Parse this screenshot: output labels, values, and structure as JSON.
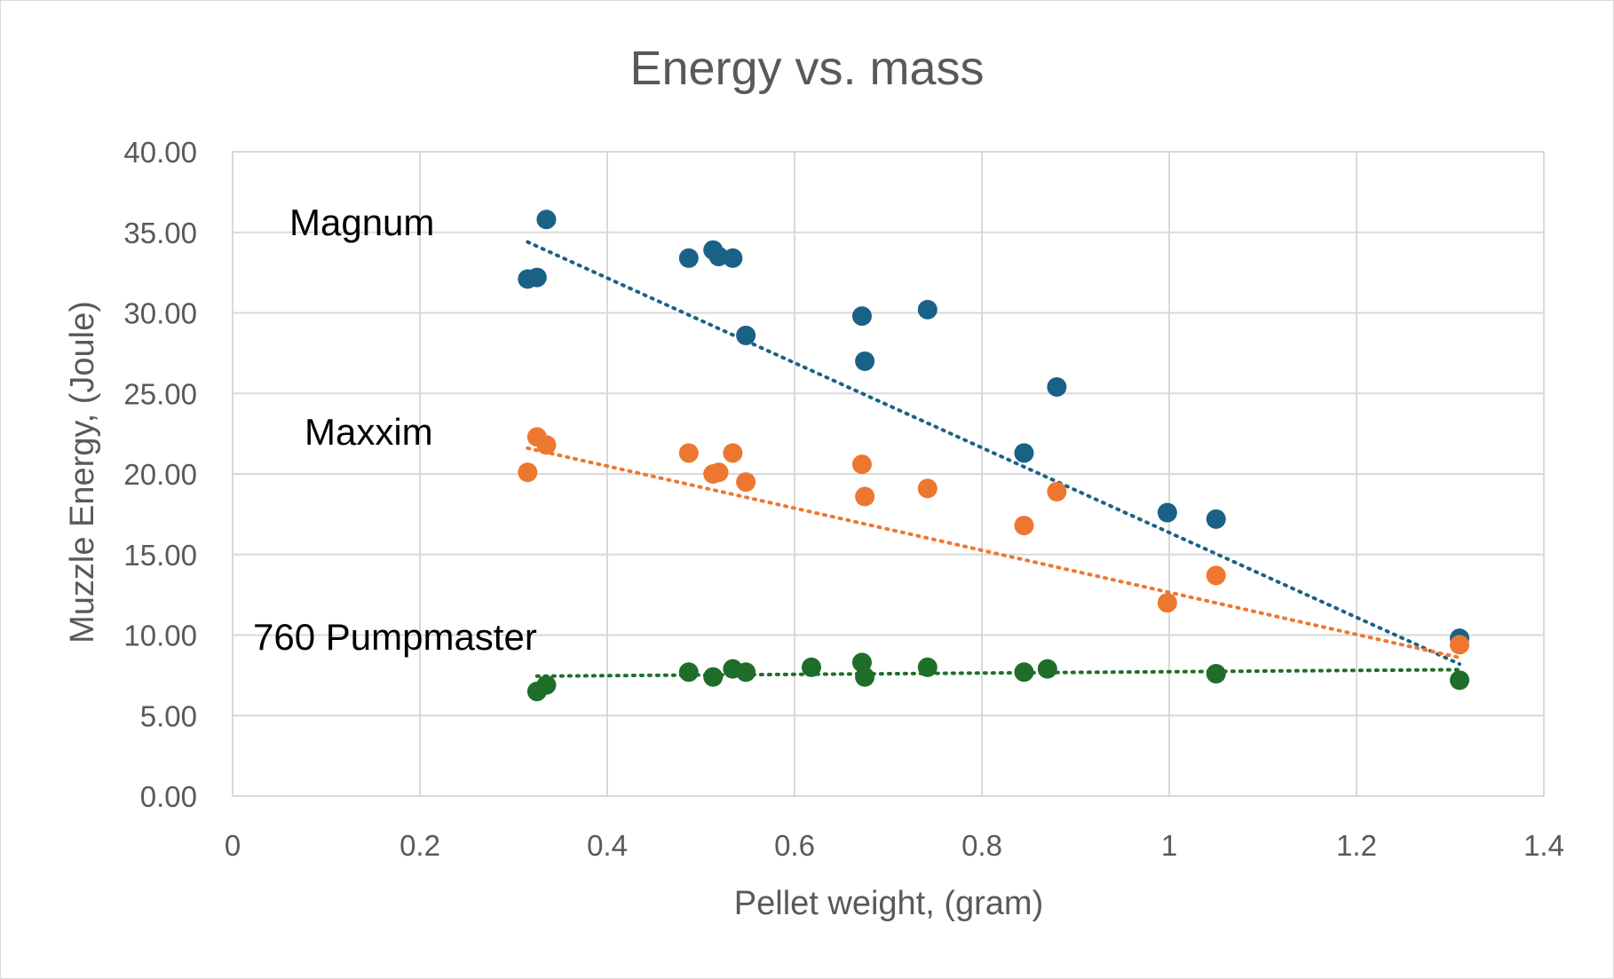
{
  "chart_data": {
    "type": "scatter",
    "title": "Energy vs. mass",
    "xlabel": "Pellet weight, (gram)",
    "ylabel": "Muzzle Energy, (Joule)",
    "xlim": [
      0,
      1.4
    ],
    "ylim": [
      0,
      40
    ],
    "x_ticks": [
      0,
      0.2,
      0.4,
      0.6,
      0.8,
      1,
      1.2,
      1.4
    ],
    "x_tick_labels": [
      "0",
      "0.2",
      "0.4",
      "0.6",
      "0.8",
      "1",
      "1.2",
      "1.4"
    ],
    "y_ticks": [
      0,
      5,
      10,
      15,
      20,
      25,
      30,
      35,
      40
    ],
    "y_tick_labels": [
      "0.00",
      "5.00",
      "10.00",
      "15.00",
      "20.00",
      "25.00",
      "30.00",
      "35.00",
      "40.00"
    ],
    "grid": true,
    "series": [
      {
        "name": "Magnum",
        "color": "#1a6285",
        "points": [
          [
            0.315,
            32.1
          ],
          [
            0.325,
            32.2
          ],
          [
            0.335,
            35.8
          ],
          [
            0.487,
            33.4
          ],
          [
            0.513,
            33.9
          ],
          [
            0.519,
            33.5
          ],
          [
            0.534,
            33.4
          ],
          [
            0.548,
            28.6
          ],
          [
            0.672,
            29.8
          ],
          [
            0.675,
            27.0
          ],
          [
            0.742,
            30.2
          ],
          [
            0.845,
            21.3
          ],
          [
            0.88,
            25.4
          ],
          [
            0.998,
            17.6
          ],
          [
            1.05,
            17.2
          ],
          [
            1.31,
            9.8
          ]
        ],
        "trendline": [
          [
            0.315,
            34.4
          ],
          [
            1.31,
            8.2
          ]
        ],
        "annotation": "Magnum"
      },
      {
        "name": "Maxxim",
        "color": "#ee7730",
        "points": [
          [
            0.315,
            20.1
          ],
          [
            0.325,
            22.3
          ],
          [
            0.335,
            21.8
          ],
          [
            0.487,
            21.3
          ],
          [
            0.513,
            20.0
          ],
          [
            0.519,
            20.1
          ],
          [
            0.534,
            21.3
          ],
          [
            0.548,
            19.5
          ],
          [
            0.672,
            20.6
          ],
          [
            0.675,
            18.6
          ],
          [
            0.742,
            19.1
          ],
          [
            0.845,
            16.8
          ],
          [
            0.88,
            18.9
          ],
          [
            0.998,
            12.0
          ],
          [
            1.05,
            13.7
          ],
          [
            1.31,
            9.4
          ]
        ],
        "trendline": [
          [
            0.315,
            21.6
          ],
          [
            1.31,
            8.6
          ]
        ],
        "annotation": "Maxxim"
      },
      {
        "name": "760 Pumpmaster",
        "color": "#1e6e2a",
        "points": [
          [
            0.325,
            6.5
          ],
          [
            0.335,
            6.9
          ],
          [
            0.487,
            7.7
          ],
          [
            0.513,
            7.4
          ],
          [
            0.534,
            7.9
          ],
          [
            0.548,
            7.7
          ],
          [
            0.618,
            8.0
          ],
          [
            0.672,
            8.3
          ],
          [
            0.675,
            7.4
          ],
          [
            0.742,
            8.0
          ],
          [
            0.845,
            7.7
          ],
          [
            0.87,
            7.9
          ],
          [
            1.05,
            7.6
          ],
          [
            1.31,
            7.2
          ]
        ],
        "trendline": [
          [
            0.325,
            7.45
          ],
          [
            1.31,
            7.85
          ]
        ],
        "annotation": "760 Pumpmaster"
      }
    ]
  }
}
